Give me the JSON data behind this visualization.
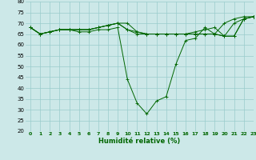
{
  "xlabel": "Humidité relative (%)",
  "xlim": [
    -0.5,
    23
  ],
  "ylim": [
    20,
    80
  ],
  "yticks": [
    20,
    25,
    30,
    35,
    40,
    45,
    50,
    55,
    60,
    65,
    70,
    75,
    80
  ],
  "xticks": [
    0,
    1,
    2,
    3,
    4,
    5,
    6,
    7,
    8,
    9,
    10,
    11,
    12,
    13,
    14,
    15,
    16,
    17,
    18,
    19,
    20,
    21,
    22,
    23
  ],
  "background_color": "#cce8e8",
  "grid_color": "#99cccc",
  "line_color": "#006600",
  "series": [
    [
      68,
      65,
      66,
      67,
      67,
      66,
      66,
      67,
      67,
      68,
      44,
      33,
      28,
      34,
      36,
      51,
      62,
      63,
      68,
      65,
      70,
      72,
      73,
      73
    ],
    [
      68,
      65,
      66,
      67,
      67,
      67,
      67,
      68,
      69,
      70,
      70,
      66,
      65,
      65,
      65,
      65,
      65,
      66,
      67,
      68,
      64,
      70,
      72,
      73
    ],
    [
      68,
      65,
      66,
      67,
      67,
      67,
      67,
      68,
      69,
      70,
      67,
      65,
      65,
      65,
      65,
      65,
      65,
      65,
      65,
      65,
      64,
      64,
      72,
      73
    ],
    [
      68,
      65,
      66,
      67,
      67,
      67,
      67,
      68,
      69,
      70,
      67,
      66,
      65,
      65,
      65,
      65,
      65,
      65,
      65,
      65,
      64,
      64,
      72,
      73
    ]
  ]
}
